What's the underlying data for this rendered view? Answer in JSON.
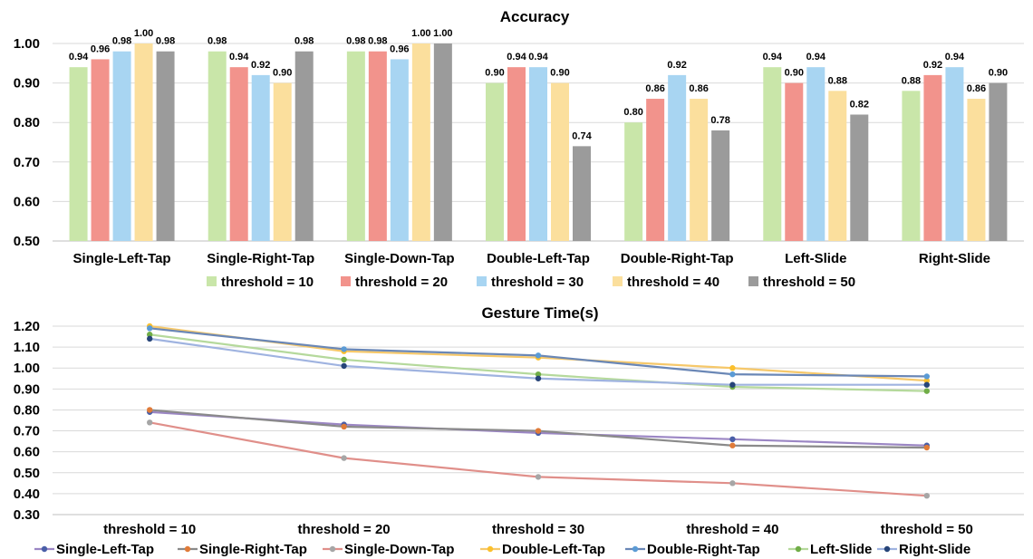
{
  "chart_data": [
    {
      "type": "bar",
      "title": "Accuracy",
      "categories": [
        "Single-Left-Tap",
        "Single-Right-Tap",
        "Single-Down-Tap",
        "Double-Left-Tap",
        "Double-Right-Tap",
        "Left-Slide",
        "Right-Slide"
      ],
      "series": [
        {
          "name": "threshold = 10",
          "color": "#c9e6a9",
          "values": [
            0.94,
            0.98,
            0.98,
            0.9,
            0.8,
            0.94,
            0.88
          ],
          "labels": [
            "0.94",
            "0.98",
            "0.98",
            "0.90",
            "0.80",
            "0.94",
            "0.88"
          ]
        },
        {
          "name": "threshold = 20",
          "color": "#f2938c",
          "values": [
            0.96,
            0.94,
            0.98,
            0.94,
            0.86,
            0.9,
            0.92
          ],
          "labels": [
            "0.96",
            "0.94",
            "0.98",
            "0.94",
            "0.86",
            "0.90",
            "0.92"
          ]
        },
        {
          "name": "threshold = 30",
          "color": "#a8d5f2",
          "values": [
            0.98,
            0.92,
            0.96,
            0.94,
            0.92,
            0.94,
            0.94
          ],
          "labels": [
            "0.98",
            "0.92",
            "0.96",
            "0.94",
            "0.92",
            "0.94",
            "0.94"
          ]
        },
        {
          "name": "threshold = 40",
          "color": "#fbdf9d",
          "values": [
            1.0,
            0.9,
            1.0,
            0.9,
            0.86,
            0.88,
            0.86
          ],
          "labels": [
            "1.00",
            "0.90",
            "1.00",
            "0.90",
            "0.86",
            "0.88",
            "0.86"
          ]
        },
        {
          "name": "threshold = 50",
          "color": "#9b9b9b",
          "values": [
            0.98,
            0.98,
            1.0,
            0.74,
            0.78,
            0.82,
            0.9
          ],
          "labels": [
            "0.98",
            "0.98",
            "1.00",
            "0.74",
            "0.78",
            "0.82",
            "0.90"
          ]
        }
      ],
      "ylim": [
        0.5,
        1.0
      ],
      "yticks": [
        "0.50",
        "0.60",
        "0.70",
        "0.80",
        "0.90",
        "1.00"
      ],
      "grid": true,
      "legend": "bottom"
    },
    {
      "type": "line",
      "title": "Gesture Time(s)",
      "categories": [
        "threshold = 10",
        "threshold = 20",
        "threshold = 30",
        "threshold = 40",
        "threshold = 50"
      ],
      "series": [
        {
          "name": "Single-Left-Tap",
          "color": "#9b86c4",
          "marker": "#4a5fa8",
          "values": [
            0.79,
            0.73,
            0.69,
            0.66,
            0.63
          ]
        },
        {
          "name": "Single-Right-Tap",
          "color": "#8a8a8a",
          "marker": "#e07b39",
          "values": [
            0.8,
            0.72,
            0.7,
            0.63,
            0.62
          ]
        },
        {
          "name": "Single-Down-Tap",
          "color": "#e08f8a",
          "marker": "#a6a6a6",
          "values": [
            0.74,
            0.57,
            0.48,
            0.45,
            0.39
          ]
        },
        {
          "name": "Double-Left-Tap",
          "color": "#f6c86a",
          "marker": "#fbc02d",
          "values": [
            1.2,
            1.08,
            1.05,
            1.0,
            0.94
          ]
        },
        {
          "name": "Double-Right-Tap",
          "color": "#6a87b6",
          "marker": "#5b9bd5",
          "values": [
            1.19,
            1.09,
            1.06,
            0.97,
            0.96
          ]
        },
        {
          "name": "Left-Slide",
          "color": "#b5d99c",
          "marker": "#70ad47",
          "values": [
            1.16,
            1.04,
            0.97,
            0.91,
            0.89
          ]
        },
        {
          "name": "Right-Slide",
          "color": "#9fb3e0",
          "marker": "#264478",
          "values": [
            1.14,
            1.01,
            0.95,
            0.92,
            0.92
          ]
        }
      ],
      "ylim": [
        0.3,
        1.2
      ],
      "yticks": [
        "0.30",
        "0.40",
        "0.50",
        "0.60",
        "0.70",
        "0.80",
        "0.90",
        "1.00",
        "1.10",
        "1.20"
      ],
      "grid": true,
      "legend": "bottom"
    }
  ]
}
